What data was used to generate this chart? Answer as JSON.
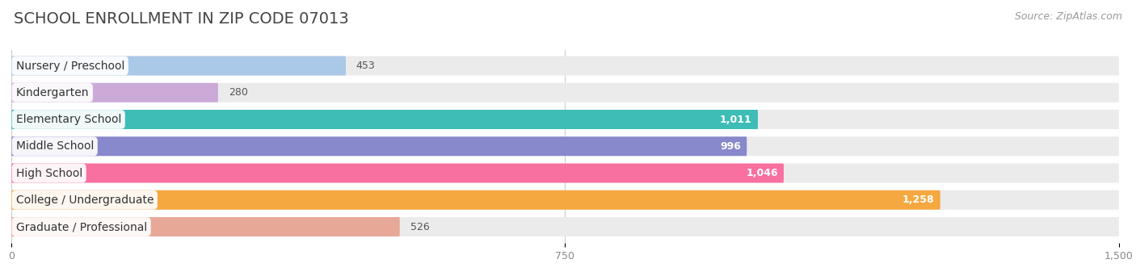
{
  "title": "SCHOOL ENROLLMENT IN ZIP CODE 07013",
  "source": "Source: ZipAtlas.com",
  "categories": [
    "Nursery / Preschool",
    "Kindergarten",
    "Elementary School",
    "Middle School",
    "High School",
    "College / Undergraduate",
    "Graduate / Professional"
  ],
  "values": [
    453,
    280,
    1011,
    996,
    1046,
    1258,
    526
  ],
  "bar_colors": [
    "#aac8e8",
    "#ccaad8",
    "#3dbdb5",
    "#8888cc",
    "#f870a0",
    "#f5a840",
    "#e8a898"
  ],
  "bar_bg_color": "#ebebeb",
  "value_inside": [
    false,
    false,
    true,
    true,
    true,
    true,
    false
  ],
  "value_color_inside": "#ffffff",
  "value_color_outside": "#555555",
  "xlim": [
    0,
    1500
  ],
  "xticks": [
    0,
    750,
    1500
  ],
  "xtick_labels": [
    "0",
    "750",
    "1,500"
  ],
  "title_fontsize": 14,
  "source_fontsize": 9,
  "label_fontsize": 10,
  "value_fontsize": 9,
  "bar_height": 0.72,
  "background_color": "#ffffff"
}
